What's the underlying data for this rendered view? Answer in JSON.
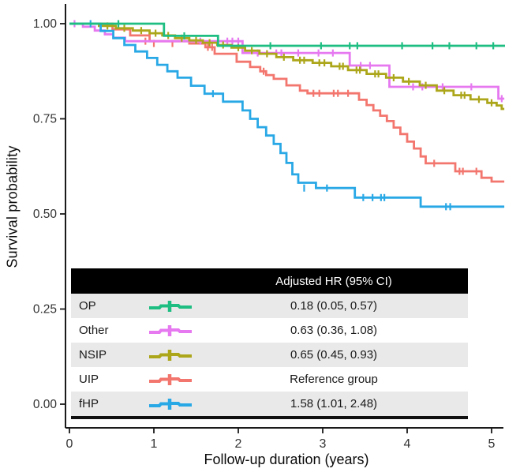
{
  "chart_data": {
    "type": "line",
    "subtype": "kaplan-meier-step",
    "title": "",
    "xlabel": "Follow-up duration (years)",
    "ylabel": "Survival probability",
    "xlim": [
      0,
      5.2
    ],
    "ylim": [
      0,
      1
    ],
    "grid": false,
    "x_ticks": [
      {
        "v": 0,
        "label": "0"
      },
      {
        "v": 1,
        "label": "1"
      },
      {
        "v": 2,
        "label": "2"
      },
      {
        "v": 3,
        "label": "3"
      },
      {
        "v": 4,
        "label": "4"
      },
      {
        "v": 5,
        "label": "5"
      }
    ],
    "y_ticks": [
      {
        "v": 0.0,
        "label": "0.00"
      },
      {
        "v": 0.25,
        "label": "0.25"
      },
      {
        "v": 0.5,
        "label": "0.50"
      },
      {
        "v": 0.75,
        "label": "0.75"
      },
      {
        "v": 1.0,
        "label": "1.00"
      }
    ],
    "series": [
      {
        "name": "UIP",
        "color": "#f3766e",
        "end": 5.15,
        "steps": [
          [
            0,
            1.0
          ],
          [
            0.51,
            0.985
          ],
          [
            0.72,
            0.969
          ],
          [
            0.95,
            0.954
          ],
          [
            1.42,
            0.948
          ],
          [
            1.61,
            0.938
          ],
          [
            1.72,
            0.921
          ],
          [
            1.98,
            0.9
          ],
          [
            2.14,
            0.886
          ],
          [
            2.26,
            0.875
          ],
          [
            2.33,
            0.865
          ],
          [
            2.42,
            0.855
          ],
          [
            2.57,
            0.838
          ],
          [
            2.73,
            0.824
          ],
          [
            2.82,
            0.817
          ],
          [
            3.43,
            0.8
          ],
          [
            3.52,
            0.786
          ],
          [
            3.6,
            0.772
          ],
          [
            3.68,
            0.758
          ],
          [
            3.76,
            0.744
          ],
          [
            3.84,
            0.727
          ],
          [
            3.92,
            0.71
          ],
          [
            4.0,
            0.69
          ],
          [
            4.08,
            0.672
          ],
          [
            4.16,
            0.651
          ],
          [
            4.22,
            0.633
          ],
          [
            4.57,
            0.612
          ],
          [
            4.88,
            0.595
          ],
          [
            5.0,
            0.585
          ]
        ],
        "censors": [
          [
            0.9,
            0.954
          ],
          [
            1.0,
            0.948
          ],
          [
            1.22,
            0.948
          ],
          [
            1.64,
            0.938
          ],
          [
            1.69,
            0.938
          ],
          [
            2.3,
            0.875
          ],
          [
            2.89,
            0.817
          ],
          [
            2.96,
            0.817
          ],
          [
            3.13,
            0.817
          ],
          [
            3.18,
            0.817
          ],
          [
            3.3,
            0.817
          ],
          [
            4.32,
            0.633
          ],
          [
            4.62,
            0.612
          ],
          [
            4.66,
            0.612
          ],
          [
            4.82,
            0.612
          ]
        ]
      },
      {
        "name": "Other",
        "color": "#e678f0",
        "end": 5.15,
        "steps": [
          [
            0,
            1.0
          ],
          [
            0.16,
            0.992
          ],
          [
            0.3,
            0.982
          ],
          [
            0.42,
            0.972
          ],
          [
            0.52,
            0.963
          ],
          [
            0.66,
            0.954
          ],
          [
            2.05,
            0.923
          ],
          [
            3.32,
            0.89
          ],
          [
            3.79,
            0.834
          ],
          [
            5.08,
            0.803
          ]
        ],
        "censors": [
          [
            0.06,
            1.0
          ],
          [
            1.55,
            0.954
          ],
          [
            1.87,
            0.954
          ],
          [
            1.93,
            0.954
          ],
          [
            2.0,
            0.954
          ],
          [
            2.23,
            0.923
          ],
          [
            2.45,
            0.923
          ],
          [
            2.51,
            0.923
          ],
          [
            2.71,
            0.923
          ],
          [
            2.95,
            0.923
          ],
          [
            3.12,
            0.923
          ],
          [
            3.45,
            0.89
          ],
          [
            3.56,
            0.89
          ],
          [
            4.07,
            0.834
          ],
          [
            4.18,
            0.834
          ],
          [
            4.42,
            0.834
          ],
          [
            4.76,
            0.834
          ],
          [
            5.12,
            0.803
          ]
        ]
      },
      {
        "name": "NSIP",
        "color": "#aca61a",
        "end": 5.15,
        "steps": [
          [
            0,
            1.0
          ],
          [
            0.35,
            0.994
          ],
          [
            0.55,
            0.988
          ],
          [
            0.75,
            0.982
          ],
          [
            0.95,
            0.975
          ],
          [
            1.1,
            0.969
          ],
          [
            1.25,
            0.962
          ],
          [
            1.42,
            0.956
          ],
          [
            1.58,
            0.95
          ],
          [
            1.75,
            0.944
          ],
          [
            1.92,
            0.937
          ],
          [
            2.08,
            0.929
          ],
          [
            2.25,
            0.921
          ],
          [
            2.45,
            0.912
          ],
          [
            2.65,
            0.904
          ],
          [
            2.88,
            0.897
          ],
          [
            3.1,
            0.888
          ],
          [
            3.3,
            0.878
          ],
          [
            3.52,
            0.868
          ],
          [
            3.75,
            0.858
          ],
          [
            3.95,
            0.848
          ],
          [
            4.15,
            0.838
          ],
          [
            4.35,
            0.824
          ],
          [
            4.55,
            0.812
          ],
          [
            4.75,
            0.801
          ],
          [
            4.95,
            0.792
          ],
          [
            5.06,
            0.785
          ],
          [
            5.12,
            0.776
          ]
        ],
        "censors": [
          [
            0.45,
            0.994
          ],
          [
            0.65,
            0.988
          ],
          [
            0.85,
            0.982
          ],
          [
            1.02,
            0.975
          ],
          [
            1.17,
            0.969
          ],
          [
            1.33,
            0.962
          ],
          [
            1.5,
            0.956
          ],
          [
            1.66,
            0.95
          ],
          [
            1.82,
            0.944
          ],
          [
            2.0,
            0.937
          ],
          [
            2.16,
            0.929
          ],
          [
            2.34,
            0.921
          ],
          [
            2.54,
            0.912
          ],
          [
            2.73,
            0.904
          ],
          [
            2.78,
            0.904
          ],
          [
            2.96,
            0.897
          ],
          [
            3.02,
            0.897
          ],
          [
            3.2,
            0.888
          ],
          [
            3.24,
            0.888
          ],
          [
            3.4,
            0.878
          ],
          [
            3.44,
            0.878
          ],
          [
            3.62,
            0.868
          ],
          [
            3.66,
            0.868
          ],
          [
            3.84,
            0.858
          ],
          [
            4.02,
            0.848
          ],
          [
            4.22,
            0.838
          ],
          [
            4.44,
            0.824
          ],
          [
            4.64,
            0.812
          ],
          [
            4.68,
            0.812
          ],
          [
            4.85,
            0.801
          ],
          [
            5.0,
            0.792
          ]
        ]
      },
      {
        "name": "fHP",
        "color": "#29a8e6",
        "end": 5.15,
        "steps": [
          [
            0,
            1.0
          ],
          [
            0.37,
            0.981
          ],
          [
            0.52,
            0.962
          ],
          [
            0.65,
            0.944
          ],
          [
            0.78,
            0.927
          ],
          [
            0.92,
            0.91
          ],
          [
            1.04,
            0.892
          ],
          [
            1.16,
            0.875
          ],
          [
            1.28,
            0.858
          ],
          [
            1.44,
            0.837
          ],
          [
            1.6,
            0.816
          ],
          [
            1.82,
            0.795
          ],
          [
            2.05,
            0.772
          ],
          [
            2.14,
            0.75
          ],
          [
            2.23,
            0.728
          ],
          [
            2.33,
            0.706
          ],
          [
            2.42,
            0.684
          ],
          [
            2.5,
            0.66
          ],
          [
            2.57,
            0.634
          ],
          [
            2.64,
            0.604
          ],
          [
            2.71,
            0.582
          ],
          [
            2.92,
            0.568
          ],
          [
            3.38,
            0.543
          ],
          [
            4.16,
            0.519
          ]
        ],
        "censors": [
          [
            0.25,
            1.0
          ],
          [
            1.7,
            0.816
          ],
          [
            2.78,
            0.568
          ],
          [
            3.05,
            0.568
          ],
          [
            3.48,
            0.543
          ],
          [
            3.59,
            0.543
          ],
          [
            3.69,
            0.543
          ],
          [
            3.73,
            0.543
          ],
          [
            4.46,
            0.519
          ],
          [
            4.51,
            0.519
          ]
        ]
      },
      {
        "name": "OP",
        "color": "#1ebe82",
        "end": 5.16,
        "steps": [
          [
            0,
            1.0
          ],
          [
            1.12,
            0.968
          ],
          [
            1.76,
            0.942
          ]
        ],
        "censors": [
          [
            0.58,
            1.0
          ],
          [
            1.36,
            0.968
          ],
          [
            2.38,
            0.942
          ],
          [
            2.98,
            0.942
          ],
          [
            3.32,
            0.942
          ],
          [
            3.41,
            0.942
          ],
          [
            3.94,
            0.942
          ],
          [
            4.3,
            0.942
          ],
          [
            4.5,
            0.942
          ],
          [
            4.82,
            0.942
          ],
          [
            5.02,
            0.942
          ]
        ]
      }
    ]
  },
  "legend_table": {
    "header": "Adjusted HR (95% CI)",
    "rows": [
      {
        "label": "OP",
        "hr": "0.18 (0.05, 0.57)",
        "series": "OP"
      },
      {
        "label": "Other",
        "hr": "0.63 (0.36, 1.08)",
        "series": "Other"
      },
      {
        "label": "NSIP",
        "hr": "0.65 (0.45, 0.93)",
        "series": "NSIP"
      },
      {
        "label": "UIP",
        "hr": "Reference group",
        "series": "UIP"
      },
      {
        "label": "fHP",
        "hr": "1.58 (1.01, 2.48)",
        "series": "fHP"
      }
    ],
    "colors": {
      "header_bg": "#000000",
      "header_text": "#ffffff",
      "row_alt_bg": "#e9e9e9",
      "row_bg": "#ffffff",
      "bottom_border": "#101010"
    }
  },
  "axis": {
    "color": "#1a1a1a",
    "tick_label_color": "#333333"
  }
}
